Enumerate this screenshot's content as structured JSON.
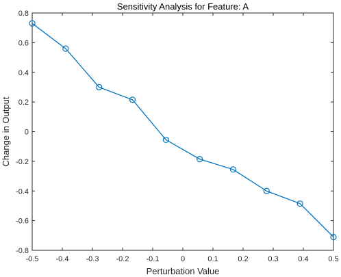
{
  "chart_data": {
    "type": "line",
    "title": "Sensitivity Analysis for Feature: A",
    "xlabel": "Perturbation Value",
    "ylabel": "Change in Output",
    "xlim": [
      -0.5,
      0.5
    ],
    "ylim": [
      -0.8,
      0.8
    ],
    "xticks": [
      -0.5,
      -0.4,
      -0.3,
      -0.2,
      -0.1,
      0,
      0.1,
      0.2,
      0.3,
      0.4,
      0.5
    ],
    "yticks": [
      -0.8,
      -0.6,
      -0.4,
      -0.2,
      0,
      0.2,
      0.4,
      0.6,
      0.8
    ],
    "xtick_labels": [
      "-0.5",
      "-0.4",
      "-0.3",
      "-0.2",
      "-0.1",
      "0",
      "0.1",
      "0.2",
      "0.3",
      "0.4",
      "0.5"
    ],
    "ytick_labels": [
      "-0.8",
      "-0.6",
      "-0.4",
      "-0.2",
      "0",
      "0.2",
      "0.4",
      "0.6",
      "0.8"
    ],
    "grid": false,
    "marker": "circle",
    "color": "#0072BD",
    "series": [
      {
        "x": [
          -0.5,
          -0.389,
          -0.278,
          -0.167,
          -0.056,
          0.056,
          0.167,
          0.278,
          0.389,
          0.5
        ],
        "y": [
          0.73,
          0.56,
          0.3,
          0.215,
          -0.055,
          -0.185,
          -0.255,
          -0.4,
          -0.485,
          -0.71
        ]
      }
    ]
  }
}
